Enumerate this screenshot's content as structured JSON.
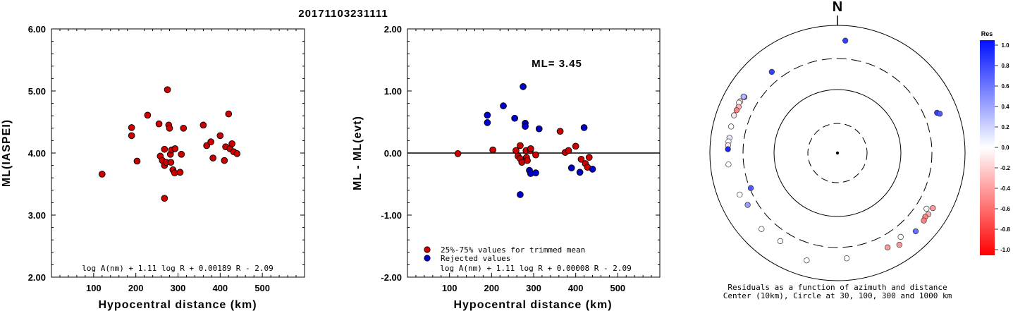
{
  "title": "20171103231111",
  "chart_data": [
    {
      "type": "scatter",
      "ylabel": "ML(IASPEI)",
      "xlabel": "Hypocentral distance (km)",
      "xticks": [
        "100",
        "200",
        "300",
        "400",
        "500"
      ],
      "yticks": [
        "2.00",
        "3.00",
        "4.00",
        "5.00",
        "6.00"
      ],
      "xlim": [
        0,
        600
      ],
      "ylim": [
        2.0,
        6.0
      ],
      "formula": "log A(nm) + 1.11 log R + 0.00189 R - 2.09",
      "point_color": "#cc0000",
      "points": [
        [
          120,
          3.66
        ],
        [
          190,
          4.41
        ],
        [
          190,
          4.28
        ],
        [
          203,
          3.87
        ],
        [
          228,
          4.61
        ],
        [
          255,
          4.47
        ],
        [
          258,
          3.95
        ],
        [
          263,
          3.88
        ],
        [
          268,
          4.06
        ],
        [
          268,
          3.8
        ],
        [
          268,
          3.27
        ],
        [
          272,
          3.85
        ],
        [
          275,
          5.02
        ],
        [
          278,
          4.45
        ],
        [
          280,
          4.4
        ],
        [
          282,
          3.98
        ],
        [
          283,
          3.85
        ],
        [
          285,
          4.05
        ],
        [
          288,
          3.73
        ],
        [
          292,
          3.68
        ],
        [
          293,
          4.07
        ],
        [
          305,
          3.69
        ],
        [
          308,
          3.98
        ],
        [
          313,
          4.4
        ],
        [
          360,
          4.45
        ],
        [
          368,
          4.12
        ],
        [
          378,
          4.18
        ],
        [
          383,
          3.92
        ],
        [
          400,
          4.28
        ],
        [
          410,
          3.88
        ],
        [
          413,
          4.1
        ],
        [
          420,
          4.63
        ],
        [
          423,
          4.07
        ],
        [
          428,
          4.15
        ],
        [
          432,
          4.02
        ],
        [
          440,
          3.99
        ]
      ]
    },
    {
      "type": "scatter",
      "ylabel": "ML - ML(evt)",
      "xlabel": "Hypocentral distance (km)",
      "xticks": [
        "100",
        "200",
        "300",
        "400",
        "500"
      ],
      "yticks": [
        "-2.00",
        "-1.00",
        "0.00",
        "1.00",
        "2.00"
      ],
      "xlim": [
        0,
        600
      ],
      "ylim": [
        -2.0,
        2.0
      ],
      "ml_text": "ML= 3.45",
      "formula": "log A(nm) + 1.11 log R + 0.00008 R - 2.09",
      "series": [
        {
          "name": "25%-75% values for trimmed mean",
          "color": "#cc0000",
          "points": [
            [
              120,
              -0.01
            ],
            [
              203,
              0.05
            ],
            [
              258,
              0.04
            ],
            [
              263,
              -0.05
            ],
            [
              268,
              0.12
            ],
            [
              268,
              -0.09
            ],
            [
              272,
              -0.15
            ],
            [
              282,
              0.04
            ],
            [
              283,
              -0.07
            ],
            [
              285,
              -0.12
            ],
            [
              292,
              0.04
            ],
            [
              293,
              0.07
            ],
            [
              305,
              -0.03
            ],
            [
              363,
              0.35
            ],
            [
              375,
              0.01
            ],
            [
              383,
              0.04
            ],
            [
              400,
              0.11
            ],
            [
              413,
              -0.1
            ],
            [
              423,
              -0.17
            ],
            [
              428,
              -0.23
            ],
            [
              432,
              -0.07
            ]
          ]
        },
        {
          "name": "Rejected values",
          "color": "#0000cc",
          "points": [
            [
              190,
              0.61
            ],
            [
              190,
              0.49
            ],
            [
              228,
              0.76
            ],
            [
              255,
              0.56
            ],
            [
              268,
              -0.67
            ],
            [
              275,
              1.07
            ],
            [
              280,
              0.48
            ],
            [
              280,
              0.43
            ],
            [
              290,
              -0.28
            ],
            [
              293,
              -0.33
            ],
            [
              305,
              -0.32
            ],
            [
              313,
              0.39
            ],
            [
              390,
              -0.24
            ],
            [
              410,
              -0.31
            ],
            [
              420,
              0.41
            ],
            [
              440,
              -0.26
            ]
          ]
        }
      ]
    },
    {
      "type": "polar",
      "north_label": "N",
      "caption_line1": "Residuals as a function of azimuth and distance",
      "caption_line2": "Center (10km), Circle at 30, 100, 300 and 1000 km",
      "colorbar_title": "Res",
      "colorbar_ticks": [
        "1.0",
        "0.8",
        "0.6",
        "0.4",
        "0.2",
        "0.0",
        "-0.2",
        "-0.4",
        "-0.6",
        "-0.8",
        "-1.0"
      ],
      "stations": [
        {
          "azimuth": 4,
          "distance": 580,
          "residual": 0.8
        },
        {
          "azimuth": 321,
          "distance": 430,
          "residual": 0.8
        },
        {
          "azimuth": 68,
          "distance": 480,
          "residual": 0.8
        },
        {
          "azimuth": 69,
          "distance": 520,
          "residual": 0.7
        },
        {
          "azimuth": 301,
          "distance": 500,
          "residual": 0.5
        },
        {
          "azimuth": 301,
          "distance": 520,
          "residual": 0.3
        },
        {
          "azimuth": 298,
          "distance": 530,
          "residual": -0.2
        },
        {
          "azimuth": 297,
          "distance": 540,
          "residual": 0.0
        },
        {
          "azimuth": 295,
          "distance": 510,
          "residual": -0.3
        },
        {
          "azimuth": 293,
          "distance": 520,
          "residual": -0.5
        },
        {
          "azimuth": 290,
          "distance": 530,
          "residual": -0.1
        },
        {
          "azimuth": 284,
          "distance": 520,
          "residual": 0.0
        },
        {
          "azimuth": 278,
          "distance": 510,
          "residual": 0.1
        },
        {
          "azimuth": 276,
          "distance": 520,
          "residual": 0.0
        },
        {
          "azimuth": 274,
          "distance": 520,
          "residual": -0.1
        },
        {
          "azimuth": 272,
          "distance": 520,
          "residual": 0.9
        },
        {
          "azimuth": 264,
          "distance": 520,
          "residual": 0.0
        },
        {
          "azimuth": 248,
          "distance": 290,
          "residual": 0.7
        },
        {
          "azimuth": 247,
          "distance": 460,
          "residual": 0.0
        },
        {
          "azimuth": 240,
          "distance": 420,
          "residual": 0.4
        },
        {
          "azimuth": 225,
          "distance": 480,
          "residual": 0.0
        },
        {
          "azimuth": 213,
          "distance": 440,
          "residual": 0.0
        },
        {
          "azimuth": 196,
          "distance": 560,
          "residual": 0.0
        },
        {
          "azimuth": 175,
          "distance": 450,
          "residual": 0.0
        },
        {
          "azimuth": 143,
          "distance": 440,
          "residual": 0.0
        },
        {
          "azimuth": 122,
          "distance": 440,
          "residual": 0.0
        },
        {
          "azimuth": 135,
          "distance": 540,
          "residual": 0.6
        },
        {
          "azimuth": 146,
          "distance": 540,
          "residual": -0.4
        },
        {
          "azimuth": 152,
          "distance": 470,
          "residual": -0.4
        },
        {
          "azimuth": 124,
          "distance": 520,
          "residual": -0.3
        },
        {
          "azimuth": 126,
          "distance": 500,
          "residual": -0.5
        },
        {
          "azimuth": 128,
          "distance": 520,
          "residual": -0.5
        },
        {
          "azimuth": 120,
          "distance": 530,
          "residual": -0.4
        }
      ]
    }
  ],
  "legend": {
    "trimmed": "25%-75% values for trimmed mean",
    "rejected": "Rejected values"
  }
}
